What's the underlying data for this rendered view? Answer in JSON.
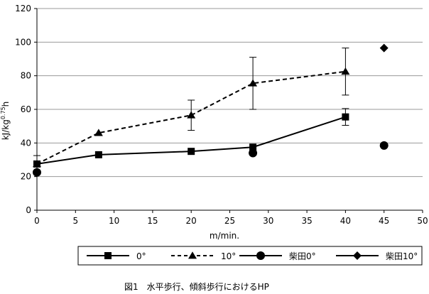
{
  "chart_data": {
    "type": "line",
    "xlabel": "m/min.",
    "ylabel": "kJ/kg",
    "ylabel_sup": "0.75",
    "ylabel_suffix": "h",
    "xlim": [
      0,
      50
    ],
    "ylim": [
      0,
      120
    ],
    "xticks": [
      0,
      5,
      10,
      15,
      20,
      25,
      30,
      35,
      40,
      45,
      50
    ],
    "yticks": [
      0,
      20,
      40,
      60,
      80,
      100,
      120
    ],
    "grid": "horizontal",
    "legend_position": "bottom",
    "series": [
      {
        "name": "0°",
        "marker": "square",
        "line": "solid",
        "x": [
          0,
          8,
          20,
          28,
          40
        ],
        "y": [
          27.5,
          33,
          35,
          37.5,
          55.5
        ],
        "error": [
          5,
          0,
          0,
          0,
          5
        ]
      },
      {
        "name": "10°",
        "marker": "triangle",
        "line": "dashed",
        "x": [
          0,
          8,
          20,
          28,
          40
        ],
        "y": [
          27.5,
          46,
          56.5,
          75.5,
          82.5
        ],
        "error": [
          0,
          0,
          9,
          15.5,
          14
        ]
      },
      {
        "name": "柴田0°",
        "marker": "circle",
        "line": "solid",
        "x": [
          0,
          28,
          45
        ],
        "y": [
          22.5,
          34,
          38.5
        ],
        "error": [
          0,
          0,
          0
        ]
      },
      {
        "name": "柴田10°",
        "marker": "diamond",
        "line": "solid",
        "x": [
          45
        ],
        "y": [
          96.5
        ],
        "error": [
          0
        ]
      }
    ]
  },
  "caption": "図1　水平歩行、傾斜歩行におけるHP"
}
